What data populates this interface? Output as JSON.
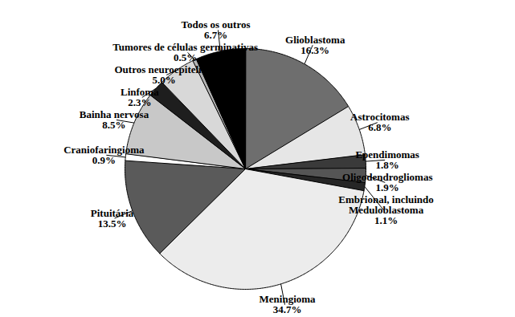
{
  "chart_data": {
    "type": "pie",
    "categories": [
      "Glioblastoma",
      "Astrocitomas",
      "Ependimomas",
      "Oligodendrogliomas",
      "Embrional, incluindo Meduloblastoma",
      "Meningioma",
      "Pituitária",
      "Craniofaringioma",
      "Bainha nervosa",
      "Linfoma",
      "Outros neuroepiteliais",
      "Tumores de células germinativas",
      "Todos os outros"
    ],
    "values": [
      16.3,
      6.8,
      1.8,
      1.9,
      1.1,
      34.7,
      13.5,
      0.9,
      8.5,
      2.3,
      5.0,
      0.5,
      6.7
    ],
    "value_labels": [
      "16.3%",
      "6.8%",
      "1.8%",
      "1.9%",
      "1.1%",
      "34.7%",
      "13.5%",
      "0.9%",
      "8.5%",
      "2.3%",
      "5.0%",
      "0.5%",
      "6.7%"
    ],
    "colors": [
      "#6e6e6e",
      "#e6e6e6",
      "#3a3a3a",
      "#555555",
      "#262626",
      "#ececec",
      "#5a5a5a",
      "#ffffff",
      "#c8c8c8",
      "#1e1e1e",
      "#d8d8d8",
      "#b4b4b4",
      "#000000"
    ],
    "data_labels": true
  }
}
